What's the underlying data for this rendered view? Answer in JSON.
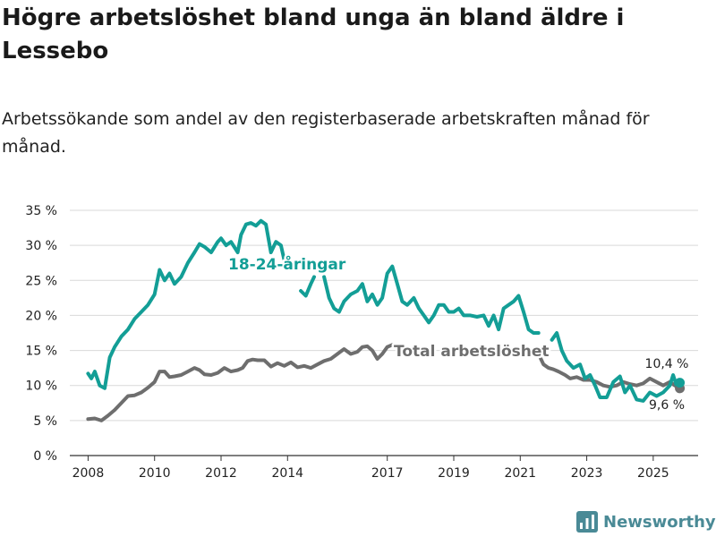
{
  "chart_data": {
    "type": "line",
    "title": "Högre arbetslöshet bland unga än bland äldre i Lessebo",
    "subtitle": "Arbetssökande som andel av den registerbaserade arbetskraften månad för månad.",
    "xlabel": "",
    "ylabel": "",
    "ylim": [
      0,
      35
    ],
    "y_ticks": [
      0,
      5,
      10,
      15,
      20,
      25,
      30,
      35
    ],
    "y_tick_labels": [
      "0 %",
      "5 %",
      "10 %",
      "15 %",
      "20 %",
      "25 %",
      "30 %",
      "35 %"
    ],
    "x_ticks": [
      2008,
      2010,
      2012,
      2014,
      2017,
      2019,
      2021,
      2023,
      2025
    ],
    "x_tick_labels": [
      "2008",
      "2010",
      "2012",
      "2014",
      "2017",
      "2019",
      "2021",
      "2023",
      "2025"
    ],
    "grid": true,
    "series": [
      {
        "name": "18-24-åringar",
        "label": "18-24-åringar",
        "color": "#139e96",
        "end_label": "10,4 %",
        "points": [
          [
            2008.0,
            11.7
          ],
          [
            2008.1,
            11.0
          ],
          [
            2008.2,
            12.0
          ],
          [
            2008.35,
            10.0
          ],
          [
            2008.5,
            9.6
          ],
          [
            2008.65,
            14.0
          ],
          [
            2008.8,
            15.5
          ],
          [
            2009.0,
            17.0
          ],
          [
            2009.2,
            18.0
          ],
          [
            2009.4,
            19.5
          ],
          [
            2009.6,
            20.5
          ],
          [
            2009.8,
            21.5
          ],
          [
            2010.0,
            23.0
          ],
          [
            2010.15,
            26.5
          ],
          [
            2010.3,
            25.0
          ],
          [
            2010.45,
            26.0
          ],
          [
            2010.6,
            24.5
          ],
          [
            2010.8,
            25.5
          ],
          [
            2011.0,
            27.5
          ],
          [
            2011.2,
            29.0
          ],
          [
            2011.35,
            30.2
          ],
          [
            2011.5,
            29.8
          ],
          [
            2011.7,
            29.0
          ],
          [
            2011.9,
            30.5
          ],
          [
            2012.0,
            31.0
          ],
          [
            2012.15,
            30.0
          ],
          [
            2012.3,
            30.5
          ],
          [
            2012.5,
            29.0
          ],
          [
            2012.6,
            31.5
          ],
          [
            2012.75,
            33.0
          ],
          [
            2012.9,
            33.2
          ],
          [
            2013.05,
            32.8
          ],
          [
            2013.2,
            33.5
          ],
          [
            2013.35,
            33.0
          ],
          [
            2013.5,
            29.0
          ],
          [
            2013.65,
            30.5
          ],
          [
            2013.8,
            30.0
          ],
          [
            2013.92,
            27.5
          ]
        ],
        "points2": [
          [
            2014.4,
            23.5
          ],
          [
            2014.55,
            22.8
          ],
          [
            2014.7,
            24.5
          ],
          [
            2014.8,
            25.5
          ]
        ],
        "points3": [
          [
            2015.1,
            25.5
          ],
          [
            2015.25,
            22.5
          ],
          [
            2015.4,
            21.0
          ],
          [
            2015.55,
            20.5
          ],
          [
            2015.7,
            22.0
          ],
          [
            2015.9,
            23.0
          ],
          [
            2016.1,
            23.5
          ],
          [
            2016.25,
            24.5
          ],
          [
            2016.4,
            22.0
          ],
          [
            2016.55,
            23.0
          ],
          [
            2016.7,
            21.5
          ],
          [
            2016.85,
            22.5
          ],
          [
            2017.0,
            26.0
          ],
          [
            2017.15,
            27.0
          ],
          [
            2017.3,
            24.5
          ],
          [
            2017.45,
            22.0
          ],
          [
            2017.6,
            21.5
          ],
          [
            2017.8,
            22.5
          ],
          [
            2017.95,
            21.0
          ],
          [
            2018.1,
            20.0
          ],
          [
            2018.25,
            19.0
          ],
          [
            2018.4,
            20.0
          ],
          [
            2018.55,
            21.5
          ],
          [
            2018.7,
            21.5
          ],
          [
            2018.85,
            20.5
          ],
          [
            2019.0,
            20.5
          ],
          [
            2019.15,
            21.0
          ],
          [
            2019.3,
            20.0
          ],
          [
            2019.5,
            20.0
          ],
          [
            2019.7,
            19.8
          ],
          [
            2019.9,
            20.0
          ],
          [
            2020.05,
            18.5
          ],
          [
            2020.2,
            20.0
          ],
          [
            2020.35,
            18.0
          ],
          [
            2020.5,
            21.0
          ],
          [
            2020.65,
            21.5
          ],
          [
            2020.8,
            22.0
          ],
          [
            2020.95,
            22.8
          ],
          [
            2021.1,
            20.5
          ],
          [
            2021.25,
            18.0
          ],
          [
            2021.4,
            17.5
          ],
          [
            2021.55,
            17.5
          ]
        ],
        "points4": [
          [
            2021.95,
            16.5
          ],
          [
            2022.1,
            17.5
          ],
          [
            2022.25,
            15.0
          ],
          [
            2022.4,
            13.5
          ],
          [
            2022.6,
            12.5
          ],
          [
            2022.8,
            13.0
          ],
          [
            2022.95,
            11.0
          ],
          [
            2023.1,
            11.5
          ],
          [
            2023.25,
            10.0
          ],
          [
            2023.4,
            8.3
          ],
          [
            2023.6,
            8.3
          ],
          [
            2023.8,
            10.5
          ],
          [
            2024.0,
            11.3
          ],
          [
            2024.15,
            9.0
          ],
          [
            2024.3,
            10.0
          ],
          [
            2024.5,
            8.0
          ],
          [
            2024.7,
            7.8
          ],
          [
            2024.9,
            9.0
          ],
          [
            2025.1,
            8.5
          ],
          [
            2025.3,
            9.0
          ],
          [
            2025.5,
            10.0
          ],
          [
            2025.6,
            11.5
          ],
          [
            2025.7,
            10.0
          ],
          [
            2025.8,
            10.4
          ]
        ]
      },
      {
        "name": "Total arbetslöshet",
        "label": "Total arbetslöshet",
        "color": "#6e6e6e",
        "end_label": "9,6 %",
        "points": [
          [
            2008.0,
            5.2
          ],
          [
            2008.2,
            5.3
          ],
          [
            2008.4,
            5.0
          ],
          [
            2008.6,
            5.7
          ],
          [
            2008.8,
            6.5
          ],
          [
            2009.0,
            7.5
          ],
          [
            2009.2,
            8.5
          ],
          [
            2009.4,
            8.6
          ],
          [
            2009.6,
            9.0
          ],
          [
            2009.8,
            9.7
          ],
          [
            2010.0,
            10.5
          ],
          [
            2010.15,
            12.0
          ],
          [
            2010.3,
            12.0
          ],
          [
            2010.45,
            11.2
          ],
          [
            2010.6,
            11.3
          ],
          [
            2010.8,
            11.5
          ],
          [
            2011.0,
            12.0
          ],
          [
            2011.2,
            12.5
          ],
          [
            2011.35,
            12.2
          ],
          [
            2011.5,
            11.6
          ],
          [
            2011.7,
            11.5
          ],
          [
            2011.9,
            11.8
          ],
          [
            2012.1,
            12.5
          ],
          [
            2012.3,
            12.0
          ],
          [
            2012.5,
            12.2
          ],
          [
            2012.65,
            12.5
          ],
          [
            2012.8,
            13.5
          ],
          [
            2012.95,
            13.7
          ],
          [
            2013.1,
            13.6
          ],
          [
            2013.3,
            13.6
          ],
          [
            2013.5,
            12.7
          ],
          [
            2013.7,
            13.2
          ],
          [
            2013.9,
            12.8
          ],
          [
            2014.1,
            13.3
          ],
          [
            2014.3,
            12.6
          ],
          [
            2014.5,
            12.8
          ],
          [
            2014.7,
            12.5
          ],
          [
            2014.9,
            13.0
          ],
          [
            2015.1,
            13.5
          ],
          [
            2015.3,
            13.8
          ],
          [
            2015.5,
            14.5
          ],
          [
            2015.7,
            15.2
          ],
          [
            2015.9,
            14.5
          ],
          [
            2016.1,
            14.8
          ],
          [
            2016.25,
            15.5
          ],
          [
            2016.4,
            15.6
          ],
          [
            2016.55,
            15.0
          ],
          [
            2016.7,
            13.8
          ],
          [
            2016.85,
            14.5
          ],
          [
            2017.0,
            15.5
          ],
          [
            2017.15,
            15.8
          ],
          [
            2017.35,
            15.2
          ]
        ],
        "points2": [
          [
            2021.55,
            14.5
          ],
          [
            2021.7,
            13.0
          ],
          [
            2021.85,
            12.5
          ],
          [
            2022.0,
            12.3
          ],
          [
            2022.15,
            12.0
          ],
          [
            2022.35,
            11.5
          ],
          [
            2022.5,
            11.0
          ],
          [
            2022.7,
            11.2
          ],
          [
            2022.9,
            10.8
          ],
          [
            2023.1,
            10.8
          ],
          [
            2023.3,
            10.5
          ],
          [
            2023.5,
            10.0
          ],
          [
            2023.7,
            9.8
          ],
          [
            2023.9,
            10.0
          ],
          [
            2024.1,
            10.5
          ],
          [
            2024.3,
            10.2
          ],
          [
            2024.5,
            10.0
          ],
          [
            2024.7,
            10.3
          ],
          [
            2024.9,
            11.0
          ],
          [
            2025.1,
            10.5
          ],
          [
            2025.3,
            10.0
          ],
          [
            2025.5,
            10.5
          ],
          [
            2025.65,
            10.0
          ],
          [
            2025.8,
            9.6
          ]
        ]
      }
    ],
    "annotations": [
      "Total arbetslöshet",
      "18-24-åringar",
      "10,4 %",
      "9,6 %"
    ]
  },
  "branding": {
    "logo_text": "Newsworthy",
    "logo_color": "#4a8a96"
  }
}
